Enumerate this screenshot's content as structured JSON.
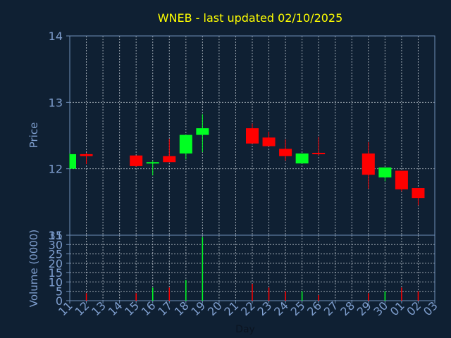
{
  "chart_data": [
    {
      "type": "candlestick",
      "title": "WNEB - last updated 02/10/2025",
      "ylabel": "Price",
      "ylim": [
        11,
        14
      ],
      "yticks": [
        11,
        12,
        13,
        14
      ],
      "grid": true,
      "x_days": [
        "11",
        "12",
        "13",
        "14",
        "15",
        "16",
        "17",
        "18",
        "19",
        "20",
        "21",
        "22",
        "23",
        "24",
        "25",
        "26",
        "27",
        "28",
        "29",
        "30",
        "01",
        "02",
        "03"
      ],
      "candles": [
        {
          "day": "11",
          "open": 12.0,
          "close": 12.22,
          "high": 12.23,
          "low": 12.0,
          "direction": "up"
        },
        {
          "day": "12",
          "open": 12.22,
          "close": 12.19,
          "high": 12.24,
          "low": 12.07,
          "direction": "down"
        },
        {
          "day": "15",
          "open": 12.2,
          "close": 12.04,
          "high": 12.2,
          "low": 12.03,
          "direction": "down"
        },
        {
          "day": "16",
          "open": 12.08,
          "close": 12.1,
          "high": 12.12,
          "low": 11.9,
          "direction": "up"
        },
        {
          "day": "17",
          "open": 12.19,
          "close": 12.1,
          "high": 12.45,
          "low": 12.1,
          "direction": "down"
        },
        {
          "day": "18",
          "open": 12.23,
          "close": 12.51,
          "high": 12.51,
          "low": 12.14,
          "direction": "up"
        },
        {
          "day": "19",
          "open": 12.51,
          "close": 12.61,
          "high": 12.82,
          "low": 12.25,
          "direction": "up"
        },
        {
          "day": "22",
          "open": 12.61,
          "close": 12.38,
          "high": 12.68,
          "low": 12.38,
          "direction": "down"
        },
        {
          "day": "23",
          "open": 12.47,
          "close": 12.34,
          "high": 12.56,
          "low": 12.34,
          "direction": "down"
        },
        {
          "day": "24",
          "open": 12.3,
          "close": 12.19,
          "high": 12.44,
          "low": 12.12,
          "direction": "down"
        },
        {
          "day": "25",
          "open": 12.08,
          "close": 12.23,
          "high": 12.23,
          "low": 12.08,
          "direction": "up"
        },
        {
          "day": "26",
          "open": 12.24,
          "close": 12.22,
          "high": 12.48,
          "low": 12.2,
          "direction": "down"
        },
        {
          "day": "29",
          "open": 12.23,
          "close": 11.91,
          "high": 12.4,
          "low": 11.7,
          "direction": "down"
        },
        {
          "day": "30",
          "open": 11.87,
          "close": 12.02,
          "high": 12.02,
          "low": 11.81,
          "direction": "up"
        },
        {
          "day": "01",
          "open": 11.97,
          "close": 11.69,
          "high": 11.97,
          "low": 11.66,
          "direction": "down"
        },
        {
          "day": "02",
          "open": 11.71,
          "close": 11.56,
          "high": 11.71,
          "low": 11.45,
          "direction": "down"
        }
      ],
      "colors": {
        "up": "#00ff22",
        "down": "#ff0000",
        "title": "#ffff00",
        "axis_text": "#7f9fcf",
        "grid": "#c0c8d0",
        "background": "#0f2033"
      }
    },
    {
      "type": "bar",
      "ylabel": "Volume (0000)",
      "xlabel": "Day",
      "ylim": [
        0,
        35
      ],
      "yticks": [
        0,
        5,
        10,
        15,
        20,
        25,
        30,
        35
      ],
      "grid": true,
      "bars": [
        {
          "day": "12",
          "value": 4,
          "direction": "down"
        },
        {
          "day": "15",
          "value": 4,
          "direction": "down"
        },
        {
          "day": "16",
          "value": 7,
          "direction": "up"
        },
        {
          "day": "17",
          "value": 7,
          "direction": "down"
        },
        {
          "day": "18",
          "value": 11,
          "direction": "up"
        },
        {
          "day": "19",
          "value": 34,
          "direction": "up"
        },
        {
          "day": "22",
          "value": 9,
          "direction": "down"
        },
        {
          "day": "23",
          "value": 7,
          "direction": "down"
        },
        {
          "day": "24",
          "value": 5,
          "direction": "down"
        },
        {
          "day": "25",
          "value": 5,
          "direction": "up"
        },
        {
          "day": "26",
          "value": 3,
          "direction": "down"
        },
        {
          "day": "29",
          "value": 4,
          "direction": "down"
        },
        {
          "day": "30",
          "value": 5,
          "direction": "up"
        },
        {
          "day": "01",
          "value": 7,
          "direction": "down"
        },
        {
          "day": "02",
          "value": 5,
          "direction": "down"
        }
      ]
    }
  ]
}
